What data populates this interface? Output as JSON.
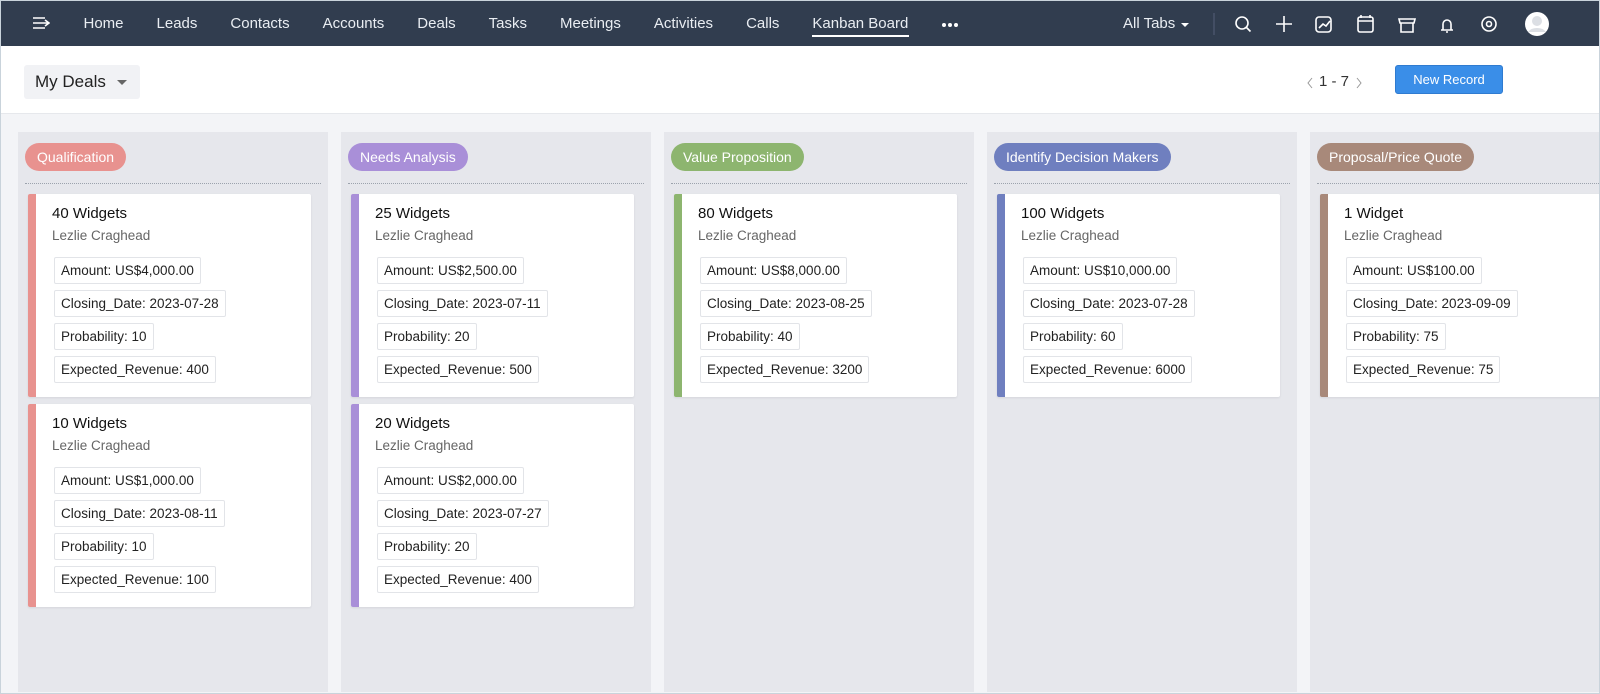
{
  "nav": {
    "items": [
      "Home",
      "Leads",
      "Contacts",
      "Accounts",
      "Deals",
      "Tasks",
      "Meetings",
      "Activities",
      "Calls",
      "Kanban Board"
    ],
    "active_index": 9,
    "all_tabs": "All Tabs"
  },
  "toolbar": {
    "view": "My Deals",
    "pagination": "1 - 7",
    "new_record": "New Record"
  },
  "columns": [
    {
      "name": "Qualification",
      "color": "#e8928f",
      "cards": [
        {
          "title": "40 Widgets",
          "owner": "Lezlie Craghead",
          "fields": [
            "Amount: US$4,000.00",
            "Closing_Date: 2023-07-28",
            "Probability: 10",
            "Expected_Revenue: 400"
          ]
        },
        {
          "title": "10 Widgets",
          "owner": "Lezlie Craghead",
          "fields": [
            "Amount: US$1,000.00",
            "Closing_Date: 2023-08-11",
            "Probability: 10",
            "Expected_Revenue: 100"
          ]
        }
      ]
    },
    {
      "name": "Needs Analysis",
      "color": "#a98fd8",
      "cards": [
        {
          "title": "25 Widgets",
          "owner": "Lezlie Craghead",
          "fields": [
            "Amount: US$2,500.00",
            "Closing_Date: 2023-07-11",
            "Probability: 20",
            "Expected_Revenue: 500"
          ]
        },
        {
          "title": "20 Widgets",
          "owner": "Lezlie Craghead",
          "fields": [
            "Amount: US$2,000.00",
            "Closing_Date: 2023-07-27",
            "Probability: 20",
            "Expected_Revenue: 400"
          ]
        }
      ]
    },
    {
      "name": "Value Proposition",
      "color": "#8db56f",
      "cards": [
        {
          "title": "80 Widgets",
          "owner": "Lezlie Craghead",
          "fields": [
            "Amount: US$8,000.00",
            "Closing_Date: 2023-08-25",
            "Probability: 40",
            "Expected_Revenue: 3200"
          ]
        }
      ]
    },
    {
      "name": "Identify Decision Makers",
      "color": "#6f7fbf",
      "cards": [
        {
          "title": "100 Widgets",
          "owner": "Lezlie Craghead",
          "fields": [
            "Amount: US$10,000.00",
            "Closing_Date: 2023-07-28",
            "Probability: 60",
            "Expected_Revenue: 6000"
          ]
        }
      ]
    },
    {
      "name": "Proposal/Price Quote",
      "color": "#a8897a",
      "cards": [
        {
          "title": "1 Widget",
          "owner": "Lezlie Craghead",
          "fields": [
            "Amount: US$100.00",
            "Closing_Date: 2023-09-09",
            "Probability: 75",
            "Expected_Revenue: 75"
          ]
        }
      ]
    }
  ]
}
